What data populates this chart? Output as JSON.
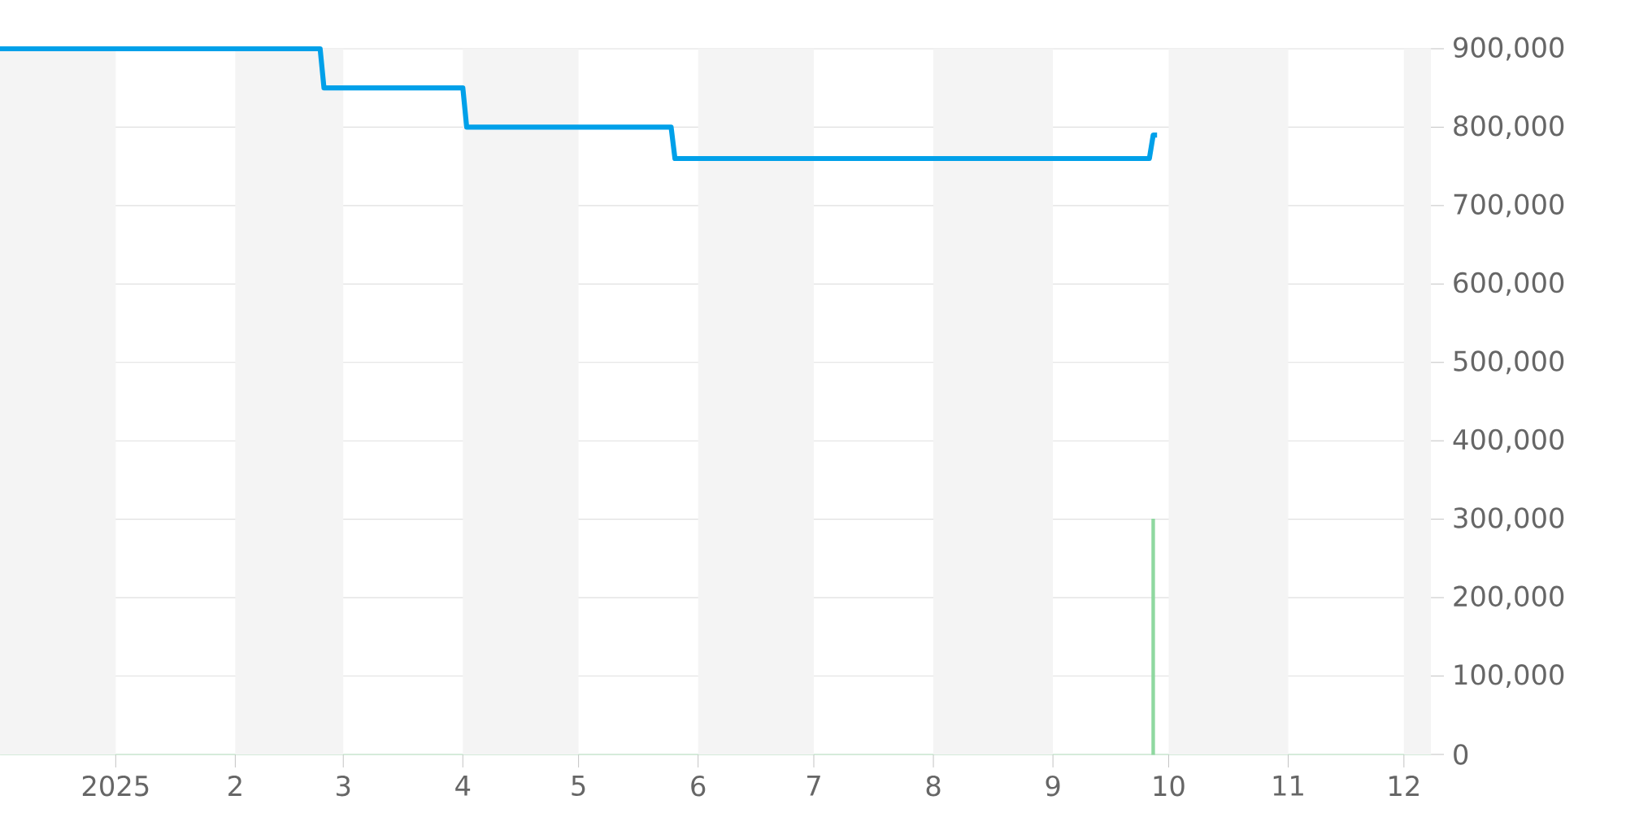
{
  "chart_data": {
    "type": "line",
    "xlim": [
      "2024-12-02",
      "2025-12-08"
    ],
    "ylim": [
      0,
      900000
    ],
    "xticks": [
      {
        "value": "2025-01-01",
        "label": "2025"
      },
      {
        "value": "2025-02-01",
        "label": "2"
      },
      {
        "value": "2025-03-01",
        "label": "3"
      },
      {
        "value": "2025-04-01",
        "label": "4"
      },
      {
        "value": "2025-05-01",
        "label": "5"
      },
      {
        "value": "2025-06-01",
        "label": "6"
      },
      {
        "value": "2025-07-01",
        "label": "7"
      },
      {
        "value": "2025-08-01",
        "label": "8"
      },
      {
        "value": "2025-09-01",
        "label": "9"
      },
      {
        "value": "2025-10-01",
        "label": "10"
      },
      {
        "value": "2025-11-01",
        "label": "11"
      },
      {
        "value": "2025-12-01",
        "label": "12"
      }
    ],
    "yticks": [
      {
        "value": 0,
        "label": "0"
      },
      {
        "value": 100000,
        "label": "100,000"
      },
      {
        "value": 200000,
        "label": "200,000"
      },
      {
        "value": 300000,
        "label": "300,000"
      },
      {
        "value": 400000,
        "label": "400,000"
      },
      {
        "value": 500000,
        "label": "500,000"
      },
      {
        "value": 600000,
        "label": "600,000"
      },
      {
        "value": 700000,
        "label": "700,000"
      },
      {
        "value": 800000,
        "label": "800,000"
      },
      {
        "value": 900000,
        "label": "900,000"
      }
    ],
    "grid": "y",
    "marker": "none",
    "bands": [
      {
        "axis": "x",
        "from": "2024-12-02",
        "to": "2025-01-01",
        "color": "#f4f4f4"
      },
      {
        "axis": "x",
        "from": "2025-02-01",
        "to": "2025-03-01",
        "color": "#f4f4f4"
      },
      {
        "axis": "x",
        "from": "2025-04-01",
        "to": "2025-05-01",
        "color": "#f4f4f4"
      },
      {
        "axis": "x",
        "from": "2025-06-01",
        "to": "2025-07-01",
        "color": "#f4f4f4"
      },
      {
        "axis": "x",
        "from": "2025-08-01",
        "to": "2025-09-01",
        "color": "#f4f4f4"
      },
      {
        "axis": "x",
        "from": "2025-10-01",
        "to": "2025-11-01",
        "color": "#f4f4f4"
      },
      {
        "axis": "x",
        "from": "2025-12-01",
        "to": "2025-12-08",
        "color": "#f4f4f4"
      }
    ],
    "series": [
      {
        "type": "line",
        "color": "#00a0e9",
        "x": [
          "2024-12-02",
          "2025-02-23",
          "2025-02-24",
          "2025-04-01",
          "2025-04-02",
          "2025-05-25",
          "2025-05-26",
          "2025-09-26",
          "2025-09-27",
          "2025-09-28"
        ],
        "values": [
          900000,
          900000,
          850000,
          850000,
          800000,
          800000,
          760000,
          760000,
          790000,
          790000
        ]
      },
      {
        "type": "bar",
        "color": "#8fd8a0",
        "x": [
          "2025-09-27"
        ],
        "values": [
          300000
        ]
      }
    ]
  }
}
